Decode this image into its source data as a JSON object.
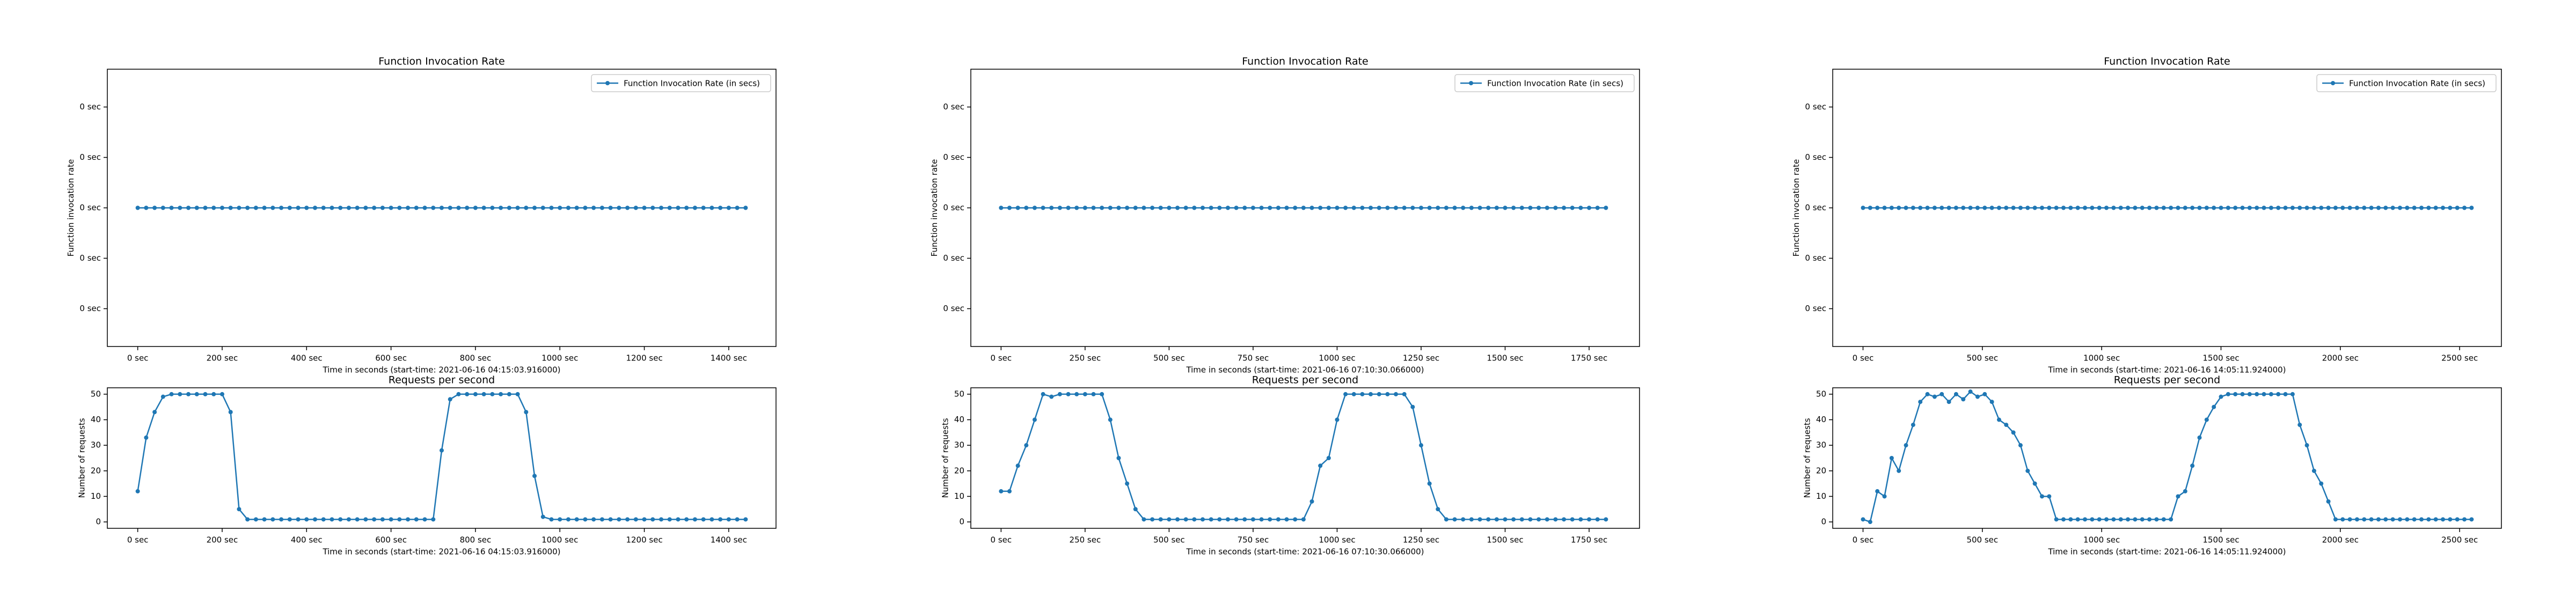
{
  "chart_data": [
    {
      "type": "line",
      "title": "Function Invocation Rate",
      "ylabel": "Function invocation rate",
      "xlabel": "Time in seconds (start-time: 2021-06-16 04:15:03.916000)",
      "legend": "upper right",
      "x": [
        0,
        20,
        40,
        60,
        80,
        100,
        120,
        140,
        160,
        180,
        200,
        220,
        240,
        260,
        280,
        300,
        320,
        340,
        360,
        380,
        400,
        420,
        440,
        460,
        480,
        500,
        520,
        540,
        560,
        580,
        600,
        620,
        640,
        660,
        680,
        700,
        720,
        740,
        760,
        780,
        800,
        820,
        840,
        860,
        880,
        900,
        920,
        940,
        960,
        980,
        1000,
        1020,
        1040,
        1060,
        1080,
        1100,
        1120,
        1140,
        1160,
        1180,
        1200,
        1220,
        1240,
        1260,
        1280,
        1300,
        1320,
        1340,
        1360,
        1380,
        1400,
        1420,
        1440
      ],
      "series": [
        {
          "name": "Function Invocation Rate (in secs)",
          "color": "#1f77b4",
          "values": [
            0,
            0,
            0,
            0,
            0,
            0,
            0,
            0,
            0,
            0,
            0,
            0,
            0,
            0,
            0,
            0,
            0,
            0,
            0,
            0,
            0,
            0,
            0,
            0,
            0,
            0,
            0,
            0,
            0,
            0,
            0,
            0,
            0,
            0,
            0,
            0,
            0,
            0,
            0,
            0,
            0,
            0,
            0,
            0,
            0,
            0,
            0,
            0,
            0,
            0,
            0,
            0,
            0,
            0,
            0,
            0,
            0,
            0,
            0,
            0,
            0,
            0,
            0,
            0,
            0,
            0,
            0,
            0,
            0,
            0,
            0,
            0,
            0
          ]
        }
      ],
      "xlim": [
        -72,
        1512
      ],
      "xticks": [
        {
          "value": 0,
          "label": "0 sec"
        },
        {
          "value": 200,
          "label": "200 sec"
        },
        {
          "value": 400,
          "label": "400 sec"
        },
        {
          "value": 600,
          "label": "600 sec"
        },
        {
          "value": 800,
          "label": "800 sec"
        },
        {
          "value": 1000,
          "label": "1000 sec"
        },
        {
          "value": 1200,
          "label": "1200 sec"
        },
        {
          "value": 1400,
          "label": "1400 sec"
        }
      ],
      "ylim": [
        -0.055,
        0.055
      ],
      "yticks": [
        {
          "value": -0.04,
          "label": "0 sec"
        },
        {
          "value": -0.02,
          "label": "0 sec"
        },
        {
          "value": 0,
          "label": "0 sec"
        },
        {
          "value": 0.02,
          "label": "0 sec"
        },
        {
          "value": 0.04,
          "label": "0 sec"
        }
      ]
    },
    {
      "type": "line",
      "title": "Requests per second",
      "ylabel": "Number of requests",
      "xlabel": "Time in seconds (start-time: 2021-06-16 04:15:03.916000)",
      "color": "#1f77b4",
      "x": [
        0,
        20,
        40,
        60,
        80,
        100,
        120,
        140,
        160,
        180,
        200,
        220,
        240,
        260,
        280,
        300,
        320,
        340,
        360,
        380,
        400,
        420,
        440,
        460,
        480,
        500,
        520,
        540,
        560,
        580,
        600,
        620,
        640,
        660,
        680,
        700,
        720,
        740,
        760,
        780,
        800,
        820,
        840,
        860,
        880,
        900,
        920,
        940,
        960,
        980,
        1000,
        1020,
        1040,
        1060,
        1080,
        1100,
        1120,
        1140,
        1160,
        1180,
        1200,
        1220,
        1240,
        1260,
        1280,
        1300,
        1320,
        1340,
        1360,
        1380,
        1400,
        1420,
        1440
      ],
      "values": [
        12,
        33,
        43,
        49,
        50,
        50,
        50,
        50,
        50,
        50,
        50,
        43,
        5,
        1,
        1,
        1,
        1,
        1,
        1,
        1,
        1,
        1,
        1,
        1,
        1,
        1,
        1,
        1,
        1,
        1,
        1,
        1,
        1,
        1,
        1,
        1,
        28,
        48,
        50,
        50,
        50,
        50,
        50,
        50,
        50,
        50,
        43,
        18,
        2,
        1,
        1,
        1,
        1,
        1,
        1,
        1,
        1,
        1,
        1,
        1,
        1,
        1,
        1,
        1,
        1,
        1,
        1,
        1,
        1,
        1,
        1,
        1,
        1
      ],
      "xlim": [
        -72,
        1512
      ],
      "xticks": [
        {
          "value": 0,
          "label": "0 sec"
        },
        {
          "value": 200,
          "label": "200 sec"
        },
        {
          "value": 400,
          "label": "400 sec"
        },
        {
          "value": 600,
          "label": "600 sec"
        },
        {
          "value": 800,
          "label": "800 sec"
        },
        {
          "value": 1000,
          "label": "1000 sec"
        },
        {
          "value": 1200,
          "label": "1200 sec"
        },
        {
          "value": 1400,
          "label": "1400 sec"
        }
      ],
      "ylim": [
        -2.5,
        52.5
      ],
      "yticks": [
        0,
        10,
        20,
        30,
        40,
        50
      ]
    },
    {
      "type": "line",
      "title": "Function Invocation Rate",
      "ylabel": "Function invocation rate",
      "xlabel": "Time in seconds (start-time: 2021-06-16 07:10:30.066000)",
      "legend": "upper right",
      "x": [
        0,
        25,
        50,
        75,
        100,
        125,
        150,
        175,
        200,
        225,
        250,
        275,
        300,
        325,
        350,
        375,
        400,
        425,
        450,
        475,
        500,
        525,
        550,
        575,
        600,
        625,
        650,
        675,
        700,
        725,
        750,
        775,
        800,
        825,
        850,
        875,
        900,
        925,
        950,
        975,
        1000,
        1025,
        1050,
        1075,
        1100,
        1125,
        1150,
        1175,
        1200,
        1225,
        1250,
        1275,
        1300,
        1325,
        1350,
        1375,
        1400,
        1425,
        1450,
        1475,
        1500,
        1525,
        1550,
        1575,
        1600,
        1625,
        1650,
        1675,
        1700,
        1725,
        1750,
        1775,
        1800
      ],
      "series": [
        {
          "name": "Function Invocation Rate (in secs)",
          "color": "#1f77b4",
          "values": [
            0,
            0,
            0,
            0,
            0,
            0,
            0,
            0,
            0,
            0,
            0,
            0,
            0,
            0,
            0,
            0,
            0,
            0,
            0,
            0,
            0,
            0,
            0,
            0,
            0,
            0,
            0,
            0,
            0,
            0,
            0,
            0,
            0,
            0,
            0,
            0,
            0,
            0,
            0,
            0,
            0,
            0,
            0,
            0,
            0,
            0,
            0,
            0,
            0,
            0,
            0,
            0,
            0,
            0,
            0,
            0,
            0,
            0,
            0,
            0,
            0,
            0,
            0,
            0,
            0,
            0,
            0,
            0,
            0,
            0,
            0,
            0,
            0
          ]
        }
      ],
      "xlim": [
        -90,
        1900
      ],
      "xticks": [
        {
          "value": 0,
          "label": "0 sec"
        },
        {
          "value": 250,
          "label": "250 sec"
        },
        {
          "value": 500,
          "label": "500 sec"
        },
        {
          "value": 750,
          "label": "750 sec"
        },
        {
          "value": 1000,
          "label": "1000 sec"
        },
        {
          "value": 1250,
          "label": "1250 sec"
        },
        {
          "value": 1500,
          "label": "1500 sec"
        },
        {
          "value": 1750,
          "label": "1750 sec"
        }
      ],
      "ylim": [
        -0.055,
        0.055
      ],
      "yticks": [
        {
          "value": -0.04,
          "label": "0 sec"
        },
        {
          "value": -0.02,
          "label": "0 sec"
        },
        {
          "value": 0,
          "label": "0 sec"
        },
        {
          "value": 0.02,
          "label": "0 sec"
        },
        {
          "value": 0.04,
          "label": "0 sec"
        }
      ]
    },
    {
      "type": "line",
      "title": "Requests per second",
      "ylabel": "Number of requests",
      "xlabel": "Time in seconds (start-time: 2021-06-16 07:10:30.066000)",
      "color": "#1f77b4",
      "x": [
        0,
        25,
        50,
        75,
        100,
        125,
        150,
        175,
        200,
        225,
        250,
        275,
        300,
        325,
        350,
        375,
        400,
        425,
        450,
        475,
        500,
        525,
        550,
        575,
        600,
        625,
        650,
        675,
        700,
        725,
        750,
        775,
        800,
        825,
        850,
        875,
        900,
        925,
        950,
        975,
        1000,
        1025,
        1050,
        1075,
        1100,
        1125,
        1150,
        1175,
        1200,
        1225,
        1250,
        1275,
        1300,
        1325,
        1350,
        1375,
        1400,
        1425,
        1450,
        1475,
        1500,
        1525,
        1550,
        1575,
        1600,
        1625,
        1650,
        1675,
        1700,
        1725,
        1750,
        1775,
        1800
      ],
      "values": [
        12,
        12,
        22,
        30,
        40,
        50,
        49,
        50,
        50,
        50,
        50,
        50,
        50,
        40,
        25,
        15,
        5,
        1,
        1,
        1,
        1,
        1,
        1,
        1,
        1,
        1,
        1,
        1,
        1,
        1,
        1,
        1,
        1,
        1,
        1,
        1,
        1,
        8,
        22,
        25,
        40,
        50,
        50,
        50,
        50,
        50,
        50,
        50,
        50,
        45,
        30,
        15,
        5,
        1,
        1,
        1,
        1,
        1,
        1,
        1,
        1,
        1,
        1,
        1,
        1,
        1,
        1,
        1,
        1,
        1,
        1,
        1,
        1
      ],
      "xlim": [
        -90,
        1900
      ],
      "xticks": [
        {
          "value": 0,
          "label": "0 sec"
        },
        {
          "value": 250,
          "label": "250 sec"
        },
        {
          "value": 500,
          "label": "500 sec"
        },
        {
          "value": 750,
          "label": "750 sec"
        },
        {
          "value": 1000,
          "label": "1000 sec"
        },
        {
          "value": 1250,
          "label": "1250 sec"
        },
        {
          "value": 1500,
          "label": "1500 sec"
        },
        {
          "value": 1750,
          "label": "1750 sec"
        }
      ],
      "ylim": [
        -2.5,
        52.5
      ],
      "yticks": [
        0,
        10,
        20,
        30,
        40,
        50
      ]
    },
    {
      "type": "line",
      "title": "Function Invocation Rate",
      "ylabel": "Function invocation rate",
      "xlabel": "Time in seconds (start-time: 2021-06-16 14:05:11.924000)",
      "legend": "upper right",
      "x": [
        0,
        30,
        60,
        90,
        120,
        150,
        180,
        210,
        240,
        270,
        300,
        330,
        360,
        390,
        420,
        450,
        480,
        510,
        540,
        570,
        600,
        630,
        660,
        690,
        720,
        750,
        780,
        810,
        840,
        870,
        900,
        930,
        960,
        990,
        1020,
        1050,
        1080,
        1110,
        1140,
        1170,
        1200,
        1230,
        1260,
        1290,
        1320,
        1350,
        1380,
        1410,
        1440,
        1470,
        1500,
        1530,
        1560,
        1590,
        1620,
        1650,
        1680,
        1710,
        1740,
        1770,
        1800,
        1830,
        1860,
        1890,
        1920,
        1950,
        1980,
        2010,
        2040,
        2070,
        2100,
        2130,
        2160,
        2190,
        2220,
        2250,
        2280,
        2310,
        2340,
        2370,
        2400,
        2430,
        2460,
        2490,
        2520,
        2550
      ],
      "series": [
        {
          "name": "Function Invocation Rate (in secs)",
          "color": "#1f77b4",
          "values": [
            0,
            0,
            0,
            0,
            0,
            0,
            0,
            0,
            0,
            0,
            0,
            0,
            0,
            0,
            0,
            0,
            0,
            0,
            0,
            0,
            0,
            0,
            0,
            0,
            0,
            0,
            0,
            0,
            0,
            0,
            0,
            0,
            0,
            0,
            0,
            0,
            0,
            0,
            0,
            0,
            0,
            0,
            0,
            0,
            0,
            0,
            0,
            0,
            0,
            0,
            0,
            0,
            0,
            0,
            0,
            0,
            0,
            0,
            0,
            0,
            0,
            0,
            0,
            0,
            0,
            0,
            0,
            0,
            0,
            0,
            0,
            0,
            0,
            0,
            0,
            0,
            0,
            0,
            0,
            0,
            0,
            0,
            0,
            0,
            0,
            0
          ]
        }
      ],
      "xlim": [
        -127,
        2675
      ],
      "xticks": [
        {
          "value": 0,
          "label": "0 sec"
        },
        {
          "value": 500,
          "label": "500 sec"
        },
        {
          "value": 1000,
          "label": "1000 sec"
        },
        {
          "value": 1500,
          "label": "1500 sec"
        },
        {
          "value": 2000,
          "label": "2000 sec"
        },
        {
          "value": 2500,
          "label": "2500 sec"
        }
      ],
      "ylim": [
        -0.055,
        0.055
      ],
      "yticks": [
        {
          "value": -0.04,
          "label": "0 sec"
        },
        {
          "value": -0.02,
          "label": "0 sec"
        },
        {
          "value": 0,
          "label": "0 sec"
        },
        {
          "value": 0.02,
          "label": "0 sec"
        },
        {
          "value": 0.04,
          "label": "0 sec"
        }
      ]
    },
    {
      "type": "line",
      "title": "Requests per second",
      "ylabel": "Number of requests",
      "xlabel": "Time in seconds (start-time: 2021-06-16 14:05:11.924000)",
      "color": "#1f77b4",
      "x": [
        0,
        30,
        60,
        90,
        120,
        150,
        180,
        210,
        240,
        270,
        300,
        330,
        360,
        390,
        420,
        450,
        480,
        510,
        540,
        570,
        600,
        630,
        660,
        690,
        720,
        750,
        780,
        810,
        840,
        870,
        900,
        930,
        960,
        990,
        1020,
        1050,
        1080,
        1110,
        1140,
        1170,
        1200,
        1230,
        1260,
        1290,
        1320,
        1350,
        1380,
        1410,
        1440,
        1470,
        1500,
        1530,
        1560,
        1590,
        1620,
        1650,
        1680,
        1710,
        1740,
        1770,
        1800,
        1830,
        1860,
        1890,
        1920,
        1950,
        1980,
        2010,
        2040,
        2070,
        2100,
        2130,
        2160,
        2190,
        2220,
        2250,
        2280,
        2310,
        2340,
        2370,
        2400,
        2430,
        2460,
        2490,
        2520,
        2550
      ],
      "values": [
        1,
        0,
        12,
        10,
        25,
        20,
        30,
        38,
        47,
        50,
        49,
        50,
        47,
        50,
        48,
        51,
        49,
        50,
        47,
        40,
        38,
        35,
        30,
        20,
        15,
        10,
        10,
        1,
        1,
        1,
        1,
        1,
        1,
        1,
        1,
        1,
        1,
        1,
        1,
        1,
        1,
        1,
        1,
        1,
        10,
        12,
        22,
        33,
        40,
        45,
        49,
        50,
        50,
        50,
        50,
        50,
        50,
        50,
        50,
        50,
        50,
        38,
        30,
        20,
        15,
        8,
        1,
        1,
        1,
        1,
        1,
        1,
        1,
        1,
        1,
        1,
        1,
        1,
        1,
        1,
        1,
        1,
        1,
        1,
        1,
        1
      ],
      "xlim": [
        -127,
        2675
      ],
      "xticks": [
        {
          "value": 0,
          "label": "0 sec"
        },
        {
          "value": 500,
          "label": "500 sec"
        },
        {
          "value": 1000,
          "label": "1000 sec"
        },
        {
          "value": 1500,
          "label": "1500 sec"
        },
        {
          "value": 2000,
          "label": "2000 sec"
        },
        {
          "value": 2500,
          "label": "2500 sec"
        }
      ],
      "ylim": [
        -2.5,
        52.5
      ],
      "yticks": [
        0,
        10,
        20,
        30,
        40,
        50
      ]
    }
  ]
}
